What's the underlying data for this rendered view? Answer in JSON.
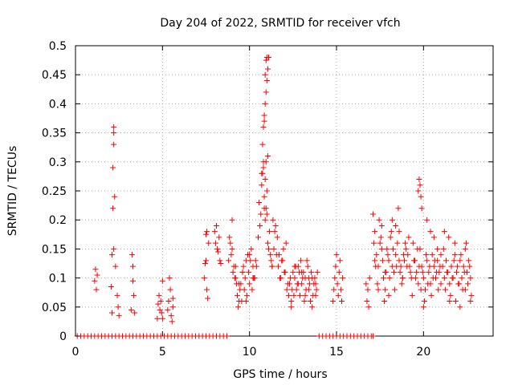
{
  "chart_data": {
    "type": "scatter",
    "title": "Day 204 of 2022, SRMTID for receiver vfch",
    "xlabel": "GPS time / hours",
    "ylabel": "SRMTID / TECUs",
    "xlim": [
      0,
      24
    ],
    "ylim": [
      0,
      0.5
    ],
    "x_ticks": [
      0,
      5,
      10,
      15,
      20
    ],
    "y_ticks": [
      0,
      0.05,
      0.1,
      0.15,
      0.2,
      0.25,
      0.3,
      0.35,
      0.4,
      0.45,
      0.5
    ],
    "grid": true,
    "marker": "+",
    "colors": {
      "points": "#ff0000",
      "grid": "#a0a0a0",
      "axis": "#000000"
    },
    "series": [
      {
        "name": "SRMTID",
        "x": [
          0.1,
          0.3,
          0.5,
          0.7,
          0.9,
          1.1,
          1.3,
          1.5,
          1.7,
          1.9,
          2.1,
          2.3,
          2.5,
          2.7,
          2.9,
          3.1,
          3.3,
          3.5,
          3.7,
          3.9,
          4.1,
          4.3,
          4.5,
          4.7,
          4.9,
          5.1,
          5.3,
          5.5,
          5.7,
          5.9,
          6.1,
          6.3,
          6.5,
          6.7,
          6.9,
          7.1,
          7.3,
          7.5,
          7.7,
          7.9,
          8.1,
          8.3,
          8.5,
          8.7,
          14.0,
          14.2,
          14.4,
          14.6,
          14.8,
          15.0,
          15.2,
          15.4,
          15.6,
          15.8,
          16.0,
          16.2,
          16.4,
          16.6,
          16.8,
          17.0,
          17.1,
          1.1,
          1.15,
          1.2,
          1.25,
          2.05,
          2.1,
          2.15,
          2.15,
          2.2,
          2.2,
          2.2,
          2.25,
          2.1,
          2.2,
          2.3,
          2.4,
          2.45,
          2.5,
          3.2,
          3.25,
          3.3,
          3.3,
          3.35,
          3.4,
          4.7,
          4.75,
          4.8,
          4.85,
          4.9,
          4.95,
          5.0,
          5.0,
          5.3,
          5.35,
          5.4,
          5.45,
          5.5,
          5.55,
          5.6,
          5.6,
          7.4,
          7.45,
          7.5,
          7.5,
          7.55,
          7.6,
          7.65,
          7.55,
          8.0,
          8.05,
          8.1,
          8.15,
          8.2,
          8.25,
          8.3,
          8.35,
          8.8,
          8.9,
          9.0,
          9.1,
          9.2,
          9.3,
          9.4,
          9.5,
          9.6,
          9.7,
          9.8,
          9.9,
          10.0,
          10.1,
          10.2,
          10.3,
          8.85,
          8.95,
          9.05,
          9.15,
          9.25,
          9.35,
          9.45,
          9.55,
          9.65,
          9.75,
          9.85,
          9.95,
          10.05,
          10.15,
          10.25,
          10.35,
          9.0,
          9.2,
          9.4,
          9.6,
          9.8,
          10.0,
          10.2,
          10.4,
          10.5,
          10.55,
          10.6,
          10.65,
          10.7,
          10.75,
          10.8,
          10.85,
          10.9,
          10.95,
          11.0,
          11.05,
          11.1,
          11.15,
          11.2,
          11.25,
          11.3,
          10.7,
          10.75,
          10.8,
          10.85,
          10.9,
          10.95,
          11.0,
          11.05,
          11.1,
          10.8,
          10.85,
          10.9,
          10.95,
          11.0,
          11.05,
          10.85,
          10.9,
          10.95,
          11.0,
          11.3,
          11.4,
          11.5,
          11.6,
          11.7,
          11.8,
          11.9,
          12.0,
          12.1,
          12.2,
          11.35,
          11.45,
          11.55,
          11.65,
          11.75,
          11.85,
          11.95,
          12.05,
          12.15,
          12.25,
          12.3,
          12.4,
          12.5,
          12.6,
          12.7,
          12.8,
          12.9,
          13.0,
          13.1,
          13.2,
          13.3,
          13.4,
          13.5,
          13.6,
          13.7,
          13.8,
          13.9,
          12.35,
          12.45,
          12.55,
          12.65,
          12.75,
          12.85,
          12.95,
          13.05,
          13.15,
          13.25,
          13.35,
          13.45,
          13.55,
          13.65,
          13.75,
          13.85,
          12.4,
          12.6,
          12.8,
          13.0,
          13.2,
          13.4,
          13.6,
          13.8,
          14.8,
          14.85,
          14.9,
          14.95,
          15.0,
          15.05,
          15.1,
          15.15,
          15.2,
          15.25,
          15.3,
          15.35,
          16.7,
          16.75,
          16.8,
          16.85,
          16.9,
          17.1,
          17.2,
          17.3,
          17.4,
          17.5,
          17.6,
          17.7,
          17.8,
          17.9,
          18.0,
          18.1,
          18.2,
          18.3,
          18.4,
          18.5,
          18.6,
          18.7,
          18.8,
          18.9,
          19.0,
          17.15,
          17.25,
          17.35,
          17.45,
          17.55,
          17.65,
          17.75,
          17.85,
          17.95,
          18.05,
          18.15,
          18.25,
          18.35,
          18.45,
          18.55,
          18.65,
          18.75,
          18.85,
          18.95,
          19.05,
          17.2,
          17.4,
          17.6,
          17.8,
          18.0,
          18.2,
          18.4,
          18.6,
          18.8,
          19.1,
          19.2,
          19.3,
          19.4,
          19.5,
          19.6,
          19.7,
          19.8,
          19.9,
          20.0,
          20.1,
          20.2,
          20.3,
          20.4,
          20.5,
          20.6,
          20.7,
          20.8,
          20.9,
          21.0,
          19.15,
          19.25,
          19.35,
          19.45,
          19.55,
          19.65,
          19.75,
          19.85,
          19.95,
          20.05,
          20.15,
          20.25,
          20.35,
          20.45,
          20.55,
          20.65,
          20.75,
          20.85,
          20.95,
          19.7,
          19.75,
          19.8,
          19.85,
          19.9,
          20.0,
          20.2,
          20.4,
          20.6,
          20.8,
          21.0,
          21.1,
          21.2,
          21.3,
          21.4,
          21.5,
          21.6,
          21.7,
          21.8,
          21.9,
          22.0,
          22.1,
          22.2,
          22.3,
          22.4,
          22.5,
          22.6,
          22.7,
          21.15,
          21.25,
          21.35,
          21.45,
          21.55,
          21.65,
          21.75,
          21.85,
          21.95,
          22.05,
          22.15,
          22.25,
          22.35,
          22.45,
          22.55,
          22.65,
          22.75,
          21.2,
          21.5,
          21.8,
          22.1,
          22.4,
          22.7
        ],
        "y": [
          0,
          0,
          0,
          0,
          0,
          0,
          0,
          0,
          0,
          0,
          0,
          0,
          0,
          0,
          0,
          0,
          0,
          0,
          0,
          0,
          0,
          0,
          0,
          0,
          0,
          0,
          0,
          0,
          0,
          0,
          0,
          0,
          0,
          0,
          0,
          0,
          0,
          0,
          0,
          0,
          0,
          0,
          0,
          0,
          0,
          0,
          0,
          0,
          0,
          0,
          0,
          0,
          0,
          0,
          0,
          0,
          0,
          0,
          0,
          0,
          0,
          0.095,
          0.115,
          0.08,
          0.105,
          0.085,
          0.14,
          0.22,
          0.29,
          0.33,
          0.35,
          0.36,
          0.24,
          0.04,
          0.15,
          0.12,
          0.07,
          0.05,
          0.035,
          0.045,
          0.14,
          0.095,
          0.12,
          0.07,
          0.04,
          0.03,
          0.055,
          0.07,
          0.045,
          0.06,
          0.04,
          0.095,
          0.03,
          0.045,
          0.06,
          0.1,
          0.08,
          0.035,
          0.025,
          0.05,
          0.065,
          0.1,
          0.125,
          0.175,
          0.13,
          0.08,
          0.065,
          0.16,
          0.18,
          0.18,
          0.16,
          0.19,
          0.15,
          0.145,
          0.17,
          0.13,
          0.125,
          0.13,
          0.16,
          0.2,
          0.12,
          0.1,
          0.07,
          0.06,
          0.09,
          0.11,
          0.08,
          0.13,
          0.14,
          0.09,
          0.15,
          0.12,
          0.1,
          0.17,
          0.14,
          0.11,
          0.1,
          0.09,
          0.05,
          0.08,
          0.06,
          0.12,
          0.1,
          0.07,
          0.11,
          0.13,
          0.08,
          0.1,
          0.13,
          0.15,
          0.12,
          0.09,
          0.11,
          0.06,
          0.14,
          0.1,
          0.12,
          0.17,
          0.23,
          0.19,
          0.21,
          0.26,
          0.28,
          0.3,
          0.24,
          0.2,
          0.22,
          0.25,
          0.16,
          0.15,
          0.18,
          0.14,
          0.13,
          0.12,
          0.28,
          0.33,
          0.36,
          0.37,
          0.4,
          0.42,
          0.44,
          0.46,
          0.48,
          0.29,
          0.38,
          0.45,
          0.475,
          0.48,
          0.31,
          0.22,
          0.27,
          0.3,
          0.21,
          0.12,
          0.15,
          0.19,
          0.17,
          0.14,
          0.1,
          0.13,
          0.11,
          0.16,
          0.09,
          0.2,
          0.18,
          0.14,
          0.12,
          0.1,
          0.13,
          0.15,
          0.11,
          0.08,
          0.07,
          0.09,
          0.06,
          0.11,
          0.1,
          0.08,
          0.12,
          0.07,
          0.09,
          0.11,
          0.1,
          0.13,
          0.08,
          0.06,
          0.1,
          0.09,
          0.07,
          0.11,
          0.1,
          0.08,
          0.07,
          0.12,
          0.09,
          0.11,
          0.13,
          0.1,
          0.06,
          0.08,
          0.12,
          0.09,
          0.11,
          0.07,
          0.1,
          0.08,
          0.05,
          0.12,
          0.09,
          0.11,
          0.07,
          0.1,
          0.05,
          0.09,
          0.06,
          0.08,
          0.1,
          0.12,
          0.14,
          0.09,
          0.07,
          0.11,
          0.13,
          0.08,
          0.06,
          0.1,
          0.09,
          0.06,
          0.08,
          0.05,
          0.1,
          0.21,
          0.18,
          0.14,
          0.12,
          0.16,
          0.19,
          0.1,
          0.08,
          0.15,
          0.13,
          0.17,
          0.2,
          0.11,
          0.14,
          0.16,
          0.18,
          0.12,
          0.1,
          0.13,
          0.15,
          0.16,
          0.12,
          0.09,
          0.2,
          0.17,
          0.13,
          0.06,
          0.11,
          0.14,
          0.1,
          0.18,
          0.15,
          0.08,
          0.12,
          0.22,
          0.11,
          0.09,
          0.14,
          0.16,
          0.12,
          0.13,
          0.08,
          0.15,
          0.11,
          0.07,
          0.12,
          0.19,
          0.13,
          0.1,
          0.14,
          0.12,
          0.1,
          0.16,
          0.13,
          0.11,
          0.09,
          0.15,
          0.12,
          0.1,
          0.08,
          0.13,
          0.11,
          0.09,
          0.14,
          0.12,
          0.1,
          0.13,
          0.11,
          0.09,
          0.17,
          0.11,
          0.07,
          0.13,
          0.1,
          0.15,
          0.12,
          0.08,
          0.11,
          0.06,
          0.14,
          0.09,
          0.12,
          0.07,
          0.1,
          0.13,
          0.11,
          0.08,
          0.12,
          0.25,
          0.27,
          0.26,
          0.24,
          0.22,
          0.05,
          0.2,
          0.18,
          0.17,
          0.15,
          0.14,
          0.12,
          0.1,
          0.13,
          0.11,
          0.09,
          0.12,
          0.1,
          0.14,
          0.11,
          0.09,
          0.13,
          0.1,
          0.12,
          0.08,
          0.11,
          0.13,
          0.1,
          0.15,
          0.08,
          0.11,
          0.17,
          0.07,
          0.1,
          0.13,
          0.06,
          0.12,
          0.09,
          0.14,
          0.08,
          0.11,
          0.16,
          0.09,
          0.12,
          0.07,
          0.18,
          0.06,
          0.16,
          0.05,
          0.15,
          0.06
        ]
      }
    ]
  }
}
